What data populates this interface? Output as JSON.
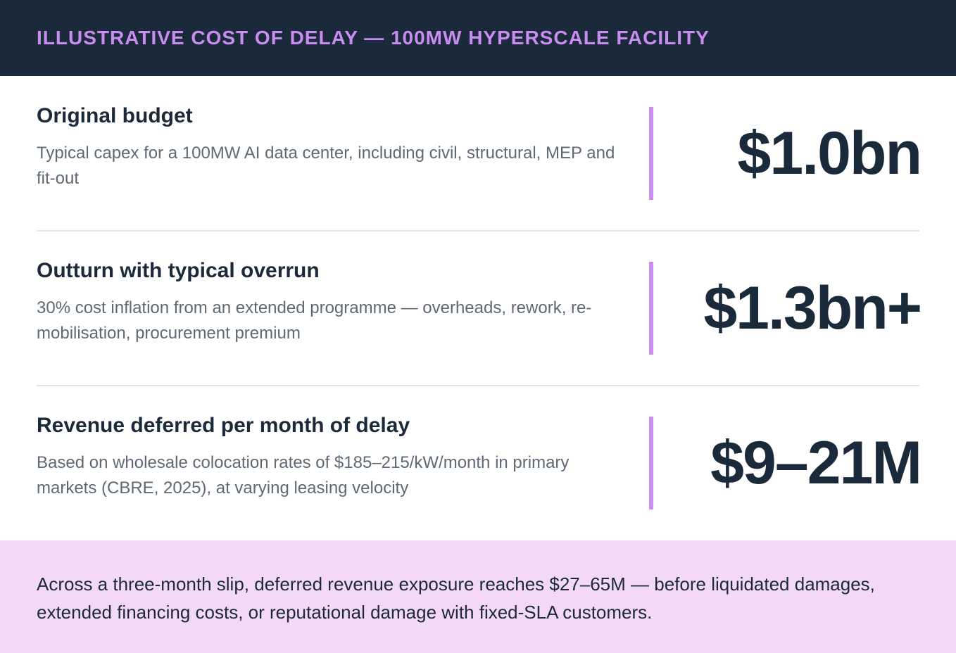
{
  "header": {
    "title": "ILLUSTRATIVE COST OF DELAY — 100MW HYPERSCALE FACILITY"
  },
  "rows": [
    {
      "title": "Original budget",
      "description": "Typical capex for a 100MW AI data center, including civil, structural, MEP and fit-out",
      "value": "$1.0bn"
    },
    {
      "title": "Outturn with typical overrun",
      "description": "30% cost inflation from an extended programme — overheads, rework, re-mobilisation, procurement premium",
      "value": "$1.3bn+"
    },
    {
      "title": "Revenue deferred per month of delay",
      "description": "Based on wholesale colocation rates of $185–215/kW/month in primary markets (CBRE, 2025), at varying leasing velocity",
      "value": "$9–21M"
    }
  ],
  "footer": {
    "text": "Across a three-month slip, deferred revenue exposure reaches $27–65M — before liquidated damages, extended financing costs, or reputational damage with fixed-SLA customers."
  },
  "colors": {
    "header_bg": "#1b2a3a",
    "accent": "#c98cf0",
    "footer_bg": "#f3d9f6",
    "text_dark": "#1b2a3a",
    "text_muted": "#5e6973"
  }
}
